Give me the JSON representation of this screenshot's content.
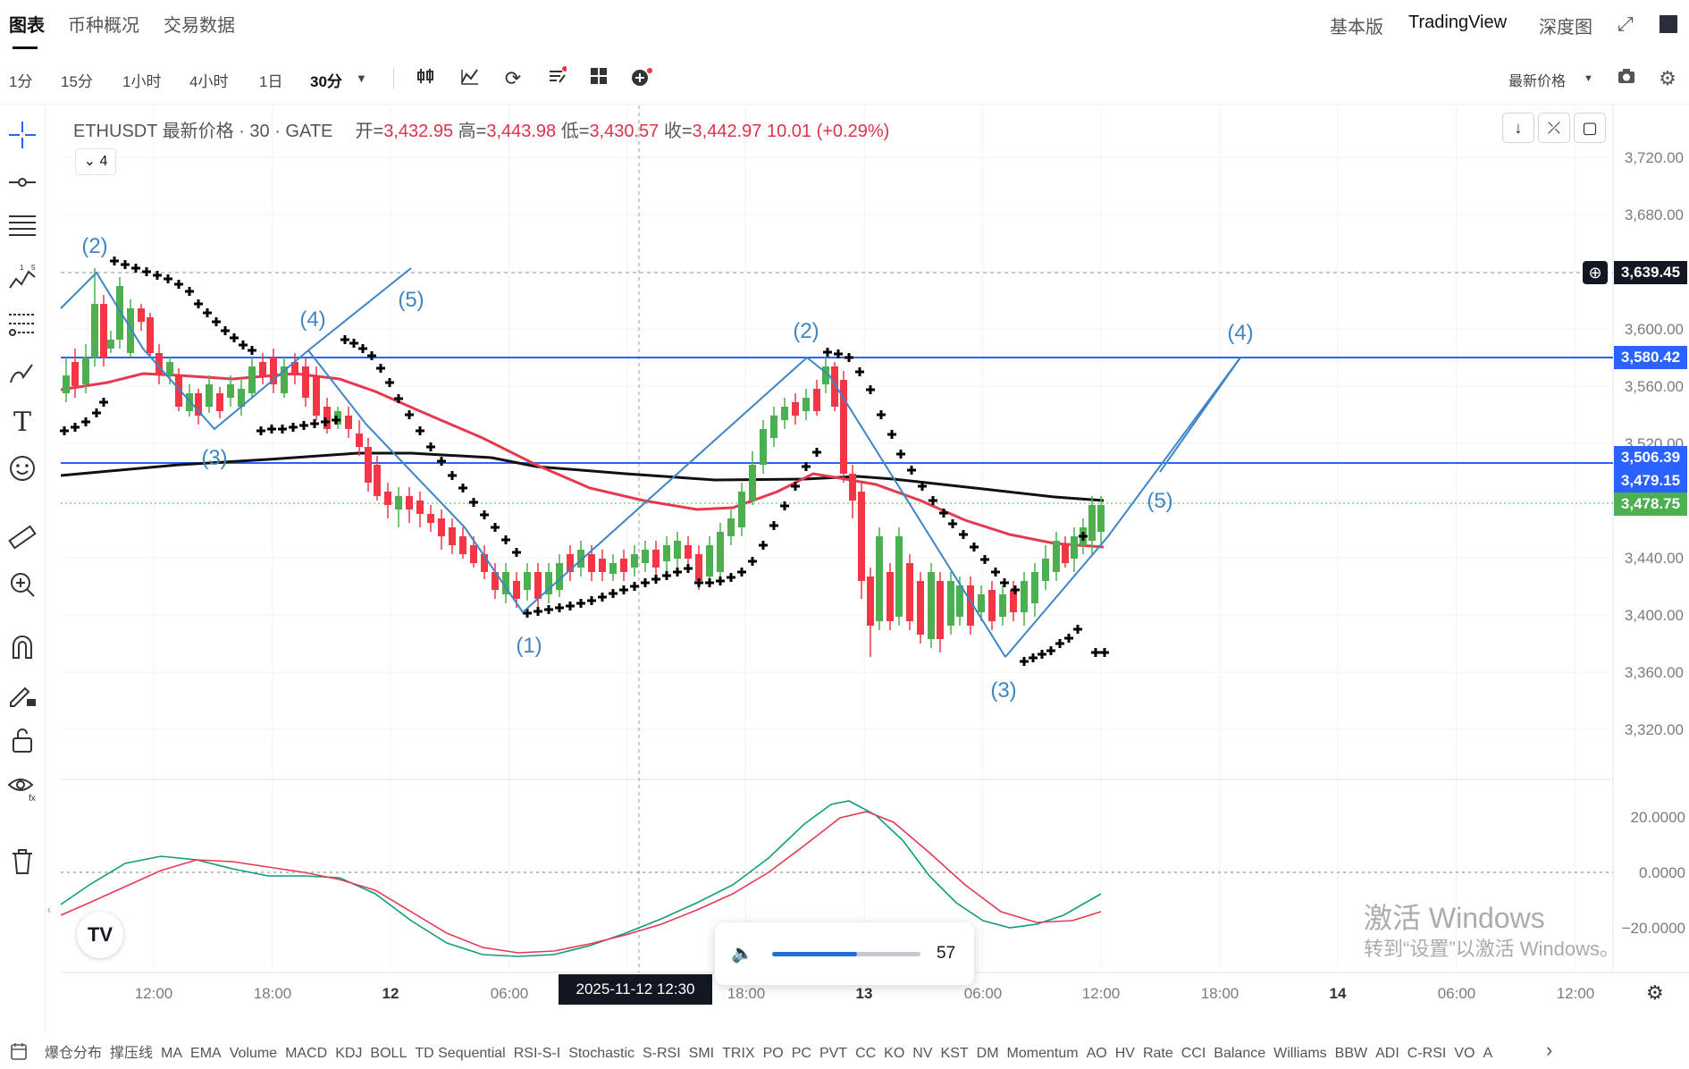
{
  "top_nav": {
    "tabs": [
      "图表",
      "币种概况",
      "交易数据"
    ],
    "right_tabs": [
      "基本版",
      "TradingView",
      "深度图"
    ]
  },
  "toolbar": {
    "timeframes": [
      "1分",
      "15分",
      "1小时",
      "4小时",
      "1日",
      "30分"
    ],
    "selected_timeframe": "30分",
    "price_type": "最新价格"
  },
  "legend": {
    "symbol": "ETHUSDT 最新价格 · 30 · GATE",
    "open_label": "开=",
    "open": "3,432.95",
    "high_label": "高=",
    "high": "3,443.98",
    "low_label": "低=",
    "low": "3,430.57",
    "close_label": "收=",
    "close": "3,442.97",
    "change": "10.01",
    "change_pct": "(+0.29%)",
    "indicator_count": "4"
  },
  "price_axis": {
    "ticks": [
      "3,720.00",
      "3,680.00",
      "3,639.45",
      "3,600.00",
      "3,580.42",
      "3,560.00",
      "3,520.00",
      "3,506.39",
      "3,479.15",
      "3,478.75",
      "3,440.00",
      "3,400.00",
      "3,360.00",
      "3,320.00"
    ],
    "badges": [
      {
        "label": "3,639.45",
        "color": "#131722"
      },
      {
        "label": "3,580.42",
        "color": "#2962ff"
      },
      {
        "label": "3,506.39",
        "color": "#2962ff"
      },
      {
        "label": "3,479.15",
        "color": "#2962ff"
      },
      {
        "label": "3,478.75",
        "color": "#4caf50"
      }
    ]
  },
  "osc_axis": {
    "ticks": [
      "20.0000",
      "0.0000",
      "−20.0000"
    ]
  },
  "time_axis": {
    "ticks": [
      "12:00",
      "18:00",
      "12",
      "06:00",
      "18:00",
      "13",
      "06:00",
      "12:00",
      "18:00",
      "14",
      "06:00",
      "12:00"
    ],
    "crosshair_date": "2025-11-12   12:30"
  },
  "wave_labels": [
    "(2)",
    "(4)",
    "(5)",
    "(3)",
    "(1)",
    "(2)",
    "(4)",
    "(5)",
    "(3)"
  ],
  "volume_popup": {
    "value": "57",
    "level": 0.57
  },
  "bottom_indicators": [
    "爆仓分布",
    "撑压线",
    "MA",
    "EMA",
    "Volume",
    "MACD",
    "KDJ",
    "BOLL",
    "TD Sequential",
    "RSI-S-I",
    "Stochastic",
    "S-RSI",
    "SMI",
    "TRIX",
    "PO",
    "PC",
    "PVT",
    "CC",
    "KO",
    "NV",
    "KST",
    "DM",
    "Momentum",
    "AO",
    "HV",
    "Rate",
    "CCI",
    "Balance",
    "Williams",
    "BBW",
    "ADI",
    "C-RSI",
    "VO",
    "A"
  ],
  "watermark": {
    "line1": "激活 Windows",
    "line2": "转到“设置”以激活 Windows。"
  },
  "colors": {
    "up": "#4caf50",
    "down": "#f23645",
    "wave": "#3d85c6",
    "hline": "#2962ff",
    "ma_red": "#e53950",
    "ma_black": "#111111"
  },
  "logo": "TV"
}
